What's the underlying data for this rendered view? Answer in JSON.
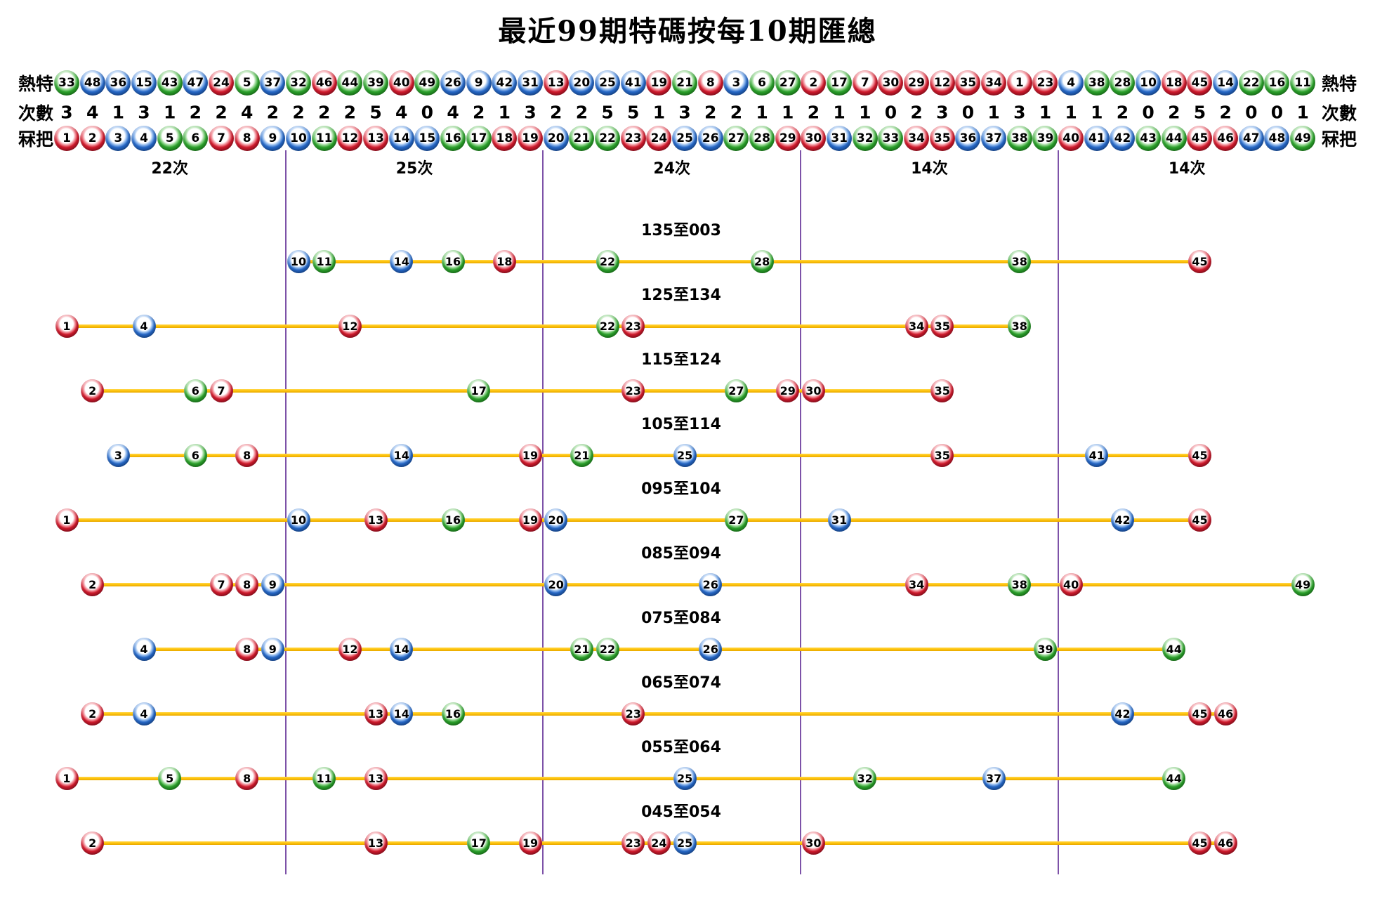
{
  "title": "最近99期特碼按每10期匯總",
  "row_labels": {
    "hot": "熱特",
    "count": "次數",
    "number": "冧把"
  },
  "colors": {
    "background": "#ffffff",
    "text": "#000000",
    "connector_yellow": "#ffc40d",
    "connector_yellow_dark": "#e8a800",
    "divider_purple": "#7d52a8",
    "red": {
      "main": "#cf1a2c",
      "dark": "#8e0b1e",
      "light": "#f2929b"
    },
    "blue": {
      "main": "#2667c5",
      "dark": "#12499b",
      "light": "#93bbee"
    },
    "green": {
      "main": "#2ba02b",
      "dark": "#147a14",
      "light": "#97d793"
    }
  },
  "ball_color_groups": {
    "red": [
      1,
      2,
      7,
      8,
      12,
      13,
      18,
      19,
      23,
      24,
      29,
      30,
      34,
      35,
      40,
      45,
      46
    ],
    "blue": [
      3,
      4,
      9,
      10,
      14,
      15,
      20,
      25,
      26,
      31,
      36,
      37,
      41,
      42,
      47,
      48
    ],
    "green": [
      5,
      6,
      11,
      16,
      17,
      21,
      22,
      27,
      28,
      32,
      33,
      38,
      39,
      43,
      44,
      49
    ]
  },
  "chart_data": {
    "type": "scatter",
    "title": "最近99期特碼按每10期匯總",
    "x_axis": {
      "label": "冧把",
      "min": 1,
      "max": 49
    },
    "hot_row": [
      33,
      48,
      36,
      15,
      43,
      47,
      24,
      5,
      37,
      32,
      46,
      44,
      39,
      40,
      49,
      26,
      9,
      42,
      31,
      13,
      20,
      25,
      41,
      19,
      21,
      8,
      3,
      6,
      27,
      2,
      17,
      7,
      30,
      29,
      12,
      35,
      34,
      1,
      23,
      4,
      38,
      28,
      10,
      18,
      45,
      14,
      22,
      16,
      11
    ],
    "count_row": [
      3,
      4,
      1,
      3,
      1,
      2,
      2,
      4,
      2,
      2,
      2,
      2,
      5,
      4,
      0,
      4,
      2,
      1,
      3,
      2,
      2,
      5,
      5,
      1,
      3,
      2,
      2,
      1,
      1,
      2,
      1,
      1,
      0,
      2,
      3,
      0,
      1,
      3,
      1,
      1,
      1,
      2,
      0,
      2,
      5,
      2,
      0,
      0,
      1
    ],
    "number_row": [
      1,
      2,
      3,
      4,
      5,
      6,
      7,
      8,
      9,
      10,
      11,
      12,
      13,
      14,
      15,
      16,
      17,
      18,
      19,
      20,
      21,
      22,
      23,
      24,
      25,
      26,
      27,
      28,
      29,
      30,
      31,
      32,
      33,
      34,
      35,
      36,
      37,
      38,
      39,
      40,
      41,
      42,
      43,
      44,
      45,
      46,
      47,
      48,
      49
    ],
    "group_totals": [
      {
        "label": "22次",
        "range": [
          1,
          9
        ]
      },
      {
        "label": "25次",
        "range": [
          10,
          19
        ]
      },
      {
        "label": "24次",
        "range": [
          20,
          29
        ]
      },
      {
        "label": "14次",
        "range": [
          30,
          39
        ]
      },
      {
        "label": "14次",
        "range": [
          40,
          49
        ]
      }
    ],
    "divider_boundaries": [
      9.5,
      19.5,
      29.5,
      39.5
    ],
    "period_rows": [
      {
        "label": "135至003",
        "numbers": [
          10,
          11,
          14,
          16,
          18,
          22,
          28,
          38,
          45
        ]
      },
      {
        "label": "125至134",
        "numbers": [
          1,
          4,
          12,
          22,
          23,
          34,
          35,
          38
        ]
      },
      {
        "label": "115至124",
        "numbers": [
          2,
          6,
          7,
          17,
          23,
          27,
          29,
          30,
          35
        ]
      },
      {
        "label": "105至114",
        "numbers": [
          3,
          6,
          8,
          14,
          19,
          21,
          25,
          35,
          41,
          45
        ]
      },
      {
        "label": "095至104",
        "numbers": [
          1,
          10,
          13,
          16,
          19,
          20,
          27,
          31,
          42,
          45
        ]
      },
      {
        "label": "085至094",
        "numbers": [
          2,
          7,
          8,
          9,
          20,
          26,
          34,
          38,
          40,
          49
        ]
      },
      {
        "label": "075至084",
        "numbers": [
          4,
          8,
          9,
          12,
          14,
          21,
          22,
          26,
          39,
          44
        ]
      },
      {
        "label": "065至074",
        "numbers": [
          2,
          4,
          13,
          14,
          16,
          23,
          42,
          45,
          46
        ]
      },
      {
        "label": "055至064",
        "numbers": [
          1,
          5,
          8,
          11,
          13,
          25,
          32,
          37,
          44
        ]
      },
      {
        "label": "045至054",
        "numbers": [
          2,
          13,
          17,
          19,
          23,
          24,
          25,
          30,
          45,
          46
        ]
      }
    ]
  }
}
